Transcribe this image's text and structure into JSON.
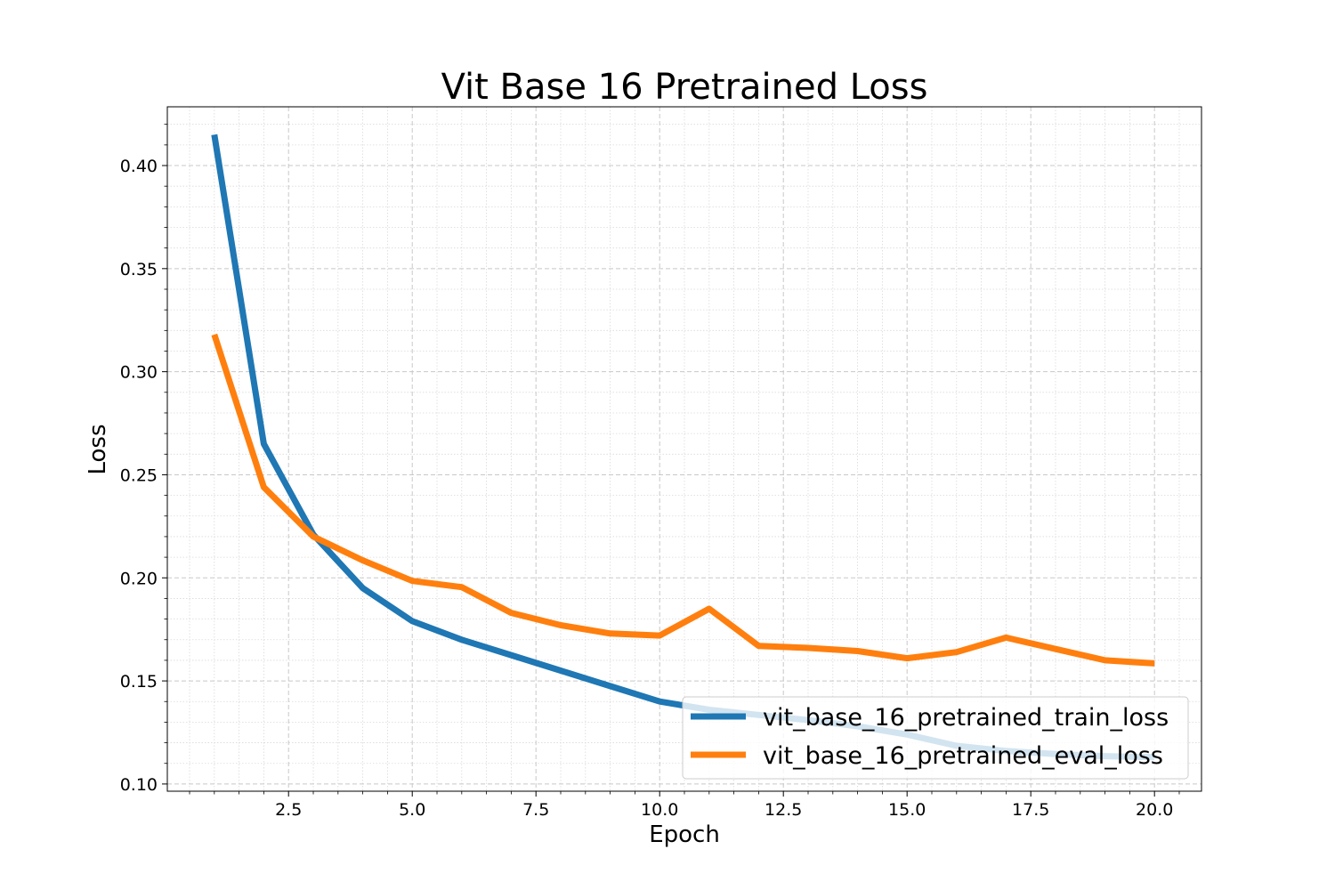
{
  "chart_data": {
    "type": "line",
    "title": "Vit Base 16 Pretrained Loss",
    "xlabel": "Epoch",
    "ylabel": "Loss",
    "xlim": [
      0.05,
      20.95
    ],
    "ylim": [
      0.0965,
      0.4285
    ],
    "xticks": [
      2.5,
      5.0,
      7.5,
      10.0,
      12.5,
      15.0,
      17.5,
      20.0
    ],
    "xtick_labels": [
      "2.5",
      "5.0",
      "7.5",
      "10.0",
      "12.5",
      "15.0",
      "17.5",
      "20.0"
    ],
    "yticks": [
      0.1,
      0.15,
      0.2,
      0.25,
      0.3,
      0.35,
      0.4
    ],
    "ytick_labels": [
      "0.10",
      "0.15",
      "0.20",
      "0.25",
      "0.30",
      "0.35",
      "0.40"
    ],
    "grid": true,
    "legend_position": "lower-right",
    "x": [
      1,
      2,
      3,
      4,
      5,
      6,
      7,
      8,
      9,
      10,
      11,
      12,
      13,
      14,
      15,
      16,
      17,
      18,
      19,
      20
    ],
    "series": [
      {
        "name": "vit_base_16_pretrained_train_loss",
        "color": "#1f77b4",
        "values": [
          0.415,
          0.265,
          0.221,
          0.195,
          0.179,
          0.17,
          0.1625,
          0.155,
          0.1475,
          0.14,
          0.136,
          0.1335,
          0.131,
          0.128,
          0.124,
          0.1185,
          0.116,
          0.1145,
          0.1135,
          0.113
        ]
      },
      {
        "name": "vit_base_16_pretrained_eval_loss",
        "color": "#ff7f0e",
        "values": [
          0.318,
          0.244,
          0.22,
          0.2085,
          0.1985,
          0.1955,
          0.183,
          0.177,
          0.173,
          0.172,
          0.185,
          0.167,
          0.166,
          0.1645,
          0.161,
          0.164,
          0.171,
          0.1655,
          0.16,
          0.1585
        ]
      }
    ]
  }
}
